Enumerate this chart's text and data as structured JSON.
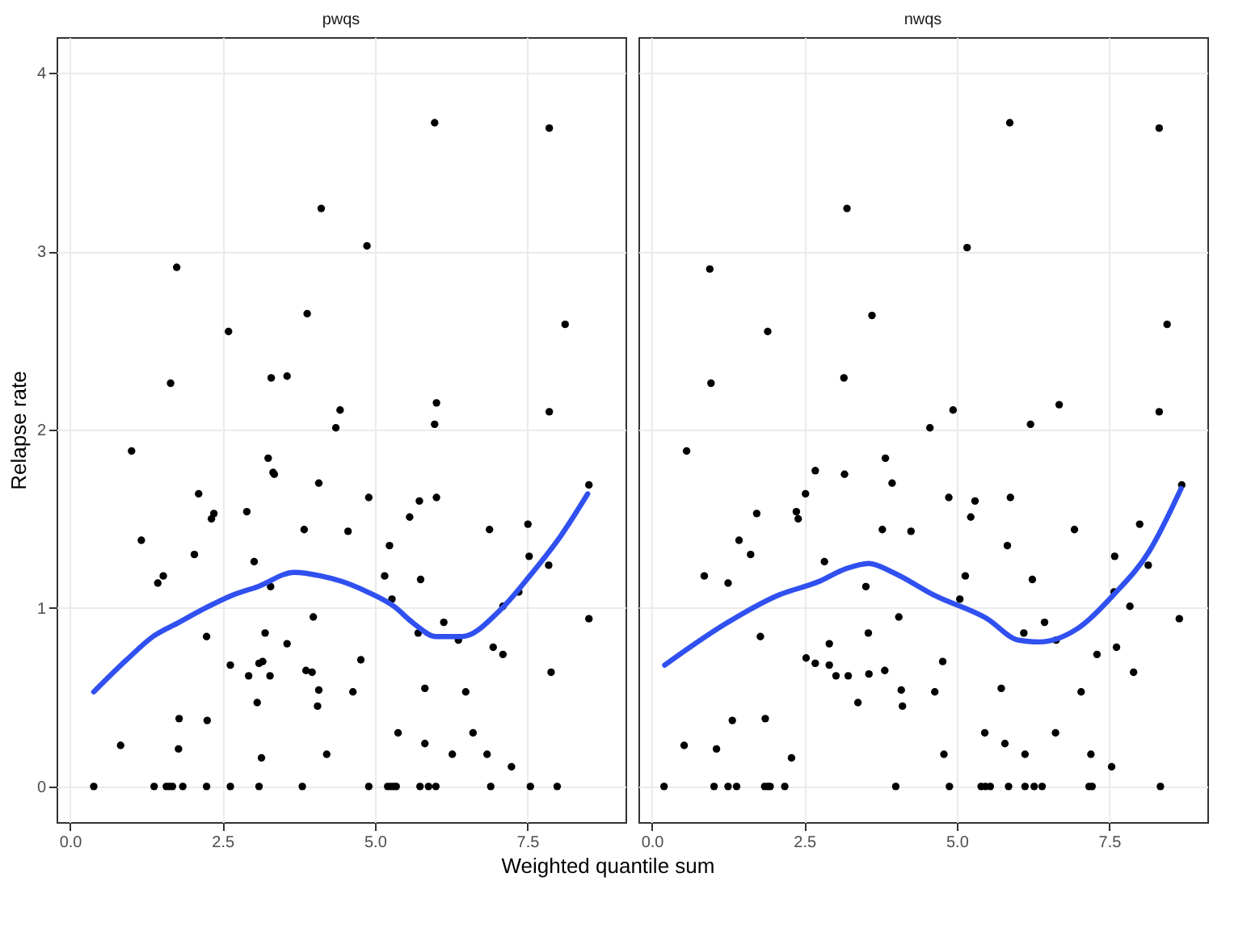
{
  "chart_data": [
    {
      "type": "scatter",
      "title": "pwqs",
      "xlabel": "Weighted quantile sum",
      "ylabel": "Relapse rate",
      "xlim": [
        -0.22,
        9.11
      ],
      "ylim": [
        -0.2,
        4.2
      ],
      "xticks": [
        {
          "value": 0,
          "label": "0.0"
        },
        {
          "value": 2.5,
          "label": "2.5"
        },
        {
          "value": 5,
          "label": "5.0"
        },
        {
          "value": 7.5,
          "label": "7.5"
        }
      ],
      "yticks": [
        0,
        1,
        2,
        3,
        4
      ],
      "grid": true,
      "marker": "circle",
      "series": [
        {
          "color": "#000000",
          "x": [
            5.98,
            7.86,
            4.12,
            4.87,
            1.75,
            3.89,
            2.6,
            8.12,
            1.65,
            3.3,
            3.56,
            4.43,
            6.01,
            7.86,
            4.36,
            5.98,
            1.01,
            2.11,
            3.25,
            3.33,
            3.35,
            4.08,
            4.9,
            5.73,
            6.01,
            2.9,
            2.36,
            2.32,
            1.17,
            2.04,
            3.84,
            4.56,
            5.57,
            5.24,
            6.88,
            7.51,
            7.53,
            7.85,
            8.51,
            3.02,
            1.53,
            1.44,
            3.29,
            5.16,
            5.75,
            5.28,
            7.36,
            7.1,
            3.99,
            6.13,
            5.71,
            6.37,
            8.51,
            2.24,
            3.2,
            3.56,
            6.94,
            7.1,
            2.63,
            3.16,
            3.1,
            4.77,
            2.93,
            3.28,
            3.87,
            3.97,
            7.89,
            4.08,
            4.64,
            5.82,
            6.49,
            3.07,
            4.06,
            1.79,
            2.25,
            5.38,
            6.61,
            0.83,
            1.78,
            5.82,
            3.14,
            4.21,
            6.27,
            6.84,
            7.24,
            0.39,
            1.38,
            1.58,
            1.63,
            1.68,
            1.85,
            2.24,
            2.63,
            3.1,
            3.81,
            4.9,
            5.21,
            5.26,
            5.31,
            5.35,
            5.74,
            5.88,
            6.0,
            6.9,
            7.55,
            7.99
          ],
          "values": [
            3.72,
            3.69,
            3.24,
            3.03,
            2.91,
            2.65,
            2.55,
            2.59,
            2.26,
            2.29,
            2.3,
            2.11,
            2.15,
            2.1,
            2.01,
            2.03,
            1.88,
            1.64,
            1.84,
            1.76,
            1.75,
            1.7,
            1.62,
            1.6,
            1.62,
            1.54,
            1.53,
            1.5,
            1.38,
            1.3,
            1.44,
            1.43,
            1.51,
            1.35,
            1.44,
            1.47,
            1.29,
            1.24,
            1.69,
            1.26,
            1.18,
            1.14,
            1.12,
            1.18,
            1.16,
            1.05,
            1.09,
            1.01,
            0.95,
            0.92,
            0.86,
            0.82,
            0.94,
            0.84,
            0.86,
            0.8,
            0.78,
            0.74,
            0.68,
            0.7,
            0.69,
            0.71,
            0.62,
            0.62,
            0.65,
            0.64,
            0.64,
            0.54,
            0.53,
            0.55,
            0.53,
            0.47,
            0.45,
            0.38,
            0.37,
            0.3,
            0.3,
            0.23,
            0.21,
            0.24,
            0.16,
            0.18,
            0.18,
            0.18,
            0.11,
            0,
            0,
            0,
            0,
            0,
            0,
            0,
            0,
            0,
            0,
            0,
            0,
            0,
            0,
            0,
            0,
            0,
            0,
            0,
            0,
            0
          ]
        },
        {
          "type": "line",
          "color": "#3050f0",
          "marker": "none",
          "x": [
            0.39,
            0.93,
            1.36,
            1.79,
            2.22,
            2.65,
            3.08,
            3.68,
            4.11,
            4.45,
            4.88,
            5.31,
            5.65,
            6.0,
            6.43,
            7.03,
            7.54,
            8.06,
            8.49
          ],
          "values": [
            0.53,
            0.71,
            0.84,
            0.92,
            1.0,
            1.07,
            1.12,
            1.2,
            1.18,
            1.15,
            1.09,
            1.01,
            0.91,
            0.84,
            0.84,
            0.98,
            1.18,
            1.41,
            1.64
          ]
        }
      ]
    },
    {
      "type": "scatter",
      "title": "nwqs",
      "xlim": [
        -0.22,
        9.11
      ],
      "ylim": [
        -0.2,
        4.2
      ],
      "xticks": [
        {
          "value": 0,
          "label": "0.0"
        },
        {
          "value": 2.5,
          "label": "2.5"
        },
        {
          "value": 5,
          "label": "5.0"
        },
        {
          "value": 7.5,
          "label": "7.5"
        }
      ],
      "yticks": [
        0,
        1,
        2,
        3,
        4
      ],
      "tick_labels": "x",
      "grid": true,
      "marker": "circle",
      "series": [
        {
          "color": "#000000",
          "x": [
            5.87,
            8.32,
            3.2,
            5.17,
            0.95,
            3.61,
            1.9,
            8.45,
            0.97,
            3.15,
            4.94,
            6.68,
            8.32,
            4.56,
            6.21,
            0.57,
            2.68,
            3.16,
            3.83,
            3.94,
            2.52,
            4.87,
            5.3,
            5.88,
            1.72,
            2.37,
            2.4,
            5.23,
            1.43,
            1.62,
            2.83,
            3.78,
            4.25,
            5.83,
            6.93,
            8.0,
            7.59,
            8.14,
            8.69,
            0.86,
            1.25,
            3.51,
            5.14,
            6.24,
            5.05,
            7.58,
            7.84,
            4.05,
            6.44,
            6.1,
            6.63,
            8.65,
            1.78,
            3.55,
            2.91,
            7.62,
            7.3,
            2.53,
            2.68,
            4.77,
            2.91,
            3.02,
            3.22,
            3.56,
            3.82,
            7.9,
            4.09,
            4.64,
            5.73,
            7.04,
            3.38,
            4.11,
            1.32,
            1.86,
            5.46,
            6.62,
            0.53,
            1.06,
            5.79,
            2.29,
            4.79,
            6.12,
            7.2,
            7.54,
            0.2,
            1.02,
            1.25,
            1.39,
            1.85,
            1.9,
            1.94,
            2.18,
            4.0,
            4.88,
            5.4,
            5.47,
            5.55,
            5.85,
            6.12,
            6.27,
            6.4,
            7.17,
            7.22,
            8.34
          ],
          "values": [
            3.72,
            3.69,
            3.24,
            3.02,
            2.9,
            2.64,
            2.55,
            2.59,
            2.26,
            2.29,
            2.11,
            2.14,
            2.1,
            2.01,
            2.03,
            1.88,
            1.77,
            1.75,
            1.84,
            1.7,
            1.64,
            1.62,
            1.6,
            1.62,
            1.53,
            1.54,
            1.5,
            1.51,
            1.38,
            1.3,
            1.26,
            1.44,
            1.43,
            1.35,
            1.44,
            1.47,
            1.29,
            1.24,
            1.69,
            1.18,
            1.14,
            1.12,
            1.18,
            1.16,
            1.05,
            1.09,
            1.01,
            0.95,
            0.92,
            0.86,
            0.82,
            0.94,
            0.84,
            0.86,
            0.8,
            0.78,
            0.74,
            0.72,
            0.69,
            0.7,
            0.68,
            0.62,
            0.62,
            0.63,
            0.65,
            0.64,
            0.54,
            0.53,
            0.55,
            0.53,
            0.47,
            0.45,
            0.37,
            0.38,
            0.3,
            0.3,
            0.23,
            0.21,
            0.24,
            0.16,
            0.18,
            0.18,
            0.18,
            0.11,
            0,
            0,
            0,
            0,
            0,
            0,
            0,
            0,
            0,
            0,
            0,
            0,
            0,
            0,
            0,
            0,
            0,
            0,
            0,
            0
          ]
        },
        {
          "type": "line",
          "color": "#3050f0",
          "marker": "none",
          "x": [
            0.21,
            1.2,
            2.06,
            2.75,
            3.18,
            3.56,
            3.95,
            4.64,
            5.5,
            6.01,
            6.36,
            6.96,
            7.56,
            8.16,
            8.68
          ],
          "values": [
            0.68,
            0.91,
            1.07,
            1.15,
            1.22,
            1.25,
            1.2,
            1.07,
            0.94,
            0.82,
            0.81,
            0.88,
            1.07,
            1.32,
            1.67
          ]
        }
      ]
    }
  ]
}
